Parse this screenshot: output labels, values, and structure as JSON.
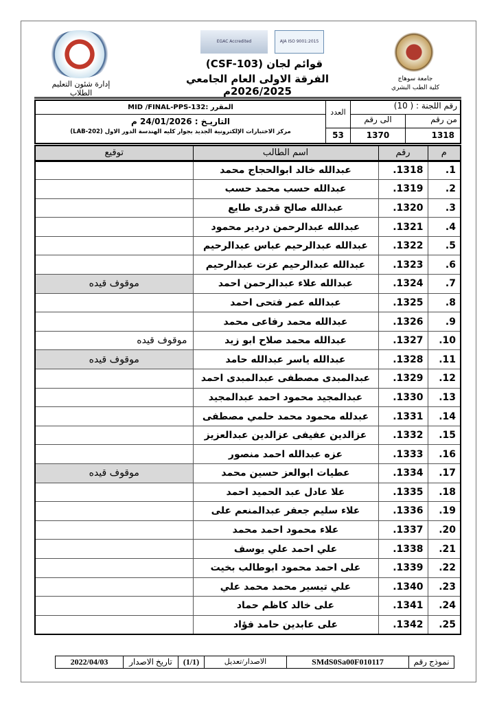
{
  "header": {
    "title": "قوائم لجان (CSF-103)",
    "subtitle": "الفرقة الاولى العام الجامعي 2026/2025م",
    "left_caption": "إدارة شئون التعليم الطلاب",
    "right_caption_1": "جامعة سوهاج",
    "right_caption_2": "كلية الطب البشري",
    "cert_logo_1": "EGAC Accredited",
    "cert_logo_2": "AJA ISO 9001:2015"
  },
  "info": {
    "committee": "رقم اللجنة : ( 10)",
    "from_label": "من رقم",
    "from_value": "1318",
    "to_label": "الى رقم",
    "to_value": "1370",
    "count_label": "العدد",
    "count_value": "53",
    "course": "المقرر :MID /FINAL-PPS-132",
    "date": "التاريـخ : 24/01/2026 م",
    "location": "مركز الاختبارات الإلكترونية الجديد بجوار كليه الهندسة الدور الاول (LAB-202)"
  },
  "table": {
    "headers": {
      "index": "م",
      "number": "رقم",
      "name": "اسم الطالب",
      "signature": "توقيع"
    },
    "rows": [
      {
        "i": "1.",
        "n": "1318.",
        "name": "عبدالله خالد ابوالحجاج محمد",
        "sig": ""
      },
      {
        "i": "2.",
        "n": "1319.",
        "name": "عبدالله حسب محمد حسب",
        "sig": ""
      },
      {
        "i": "3.",
        "n": "1320.",
        "name": "عبدالله صالح قدرى طايع",
        "sig": ""
      },
      {
        "i": "4.",
        "n": "1321.",
        "name": "عبدالله عبدالرحمن دردير محمود",
        "sig": ""
      },
      {
        "i": "5.",
        "n": "1322.",
        "name": "عبدالله عبدالرحيم عباس عبدالرحيم",
        "sig": ""
      },
      {
        "i": "6.",
        "n": "1323.",
        "name": "عبدالله عبدالرحيم عزت عبدالرحيم",
        "sig": ""
      },
      {
        "i": "7.",
        "n": "1324.",
        "name": "عبدالله علاء عبدالرحمن احمد",
        "sig": "موقوف قيده",
        "shaded": true
      },
      {
        "i": "8.",
        "n": "1325.",
        "name": "عبدالله عمر فتحى احمد",
        "sig": ""
      },
      {
        "i": "9.",
        "n": "1326.",
        "name": "عبدالله محمد رفاعى محمد",
        "sig": ""
      },
      {
        "i": "10.",
        "n": "1327.",
        "name": "عبدالله محمد صلاح ابو زيد",
        "sig": "موقوف قيده",
        "shaded": false
      },
      {
        "i": "11.",
        "n": "1328.",
        "name": "عبدالله ياسر عبدالله حامد",
        "sig": "موقوف قيده",
        "shaded": true
      },
      {
        "i": "12.",
        "n": "1329.",
        "name": "عبدالمبدى مصطفى عبدالمبدى احمد",
        "sig": ""
      },
      {
        "i": "13.",
        "n": "1330.",
        "name": "عبدالمجيد محمود احمد عبدالمجيد",
        "sig": ""
      },
      {
        "i": "14.",
        "n": "1331.",
        "name": "عبدلله محمود محمد حلمي مصطفى",
        "sig": ""
      },
      {
        "i": "15.",
        "n": "1332.",
        "name": "عزالدين عفيفى عزالدين عبدالعزيز",
        "sig": ""
      },
      {
        "i": "16.",
        "n": "1333.",
        "name": "عزه عبدالله احمد منصور",
        "sig": ""
      },
      {
        "i": "17.",
        "n": "1334.",
        "name": "عطيات ابوالعز حسين محمد",
        "sig": "موقوف قيده",
        "shaded": true
      },
      {
        "i": "18.",
        "n": "1335.",
        "name": "علا عادل عبد الحميد احمد",
        "sig": ""
      },
      {
        "i": "19.",
        "n": "1336.",
        "name": "علاء سليم جعفر عبدالمنعم على",
        "sig": ""
      },
      {
        "i": "20.",
        "n": "1337.",
        "name": "علاء محمود احمد محمد",
        "sig": ""
      },
      {
        "i": "21.",
        "n": "1338.",
        "name": "علي احمد علي يوسف",
        "sig": ""
      },
      {
        "i": "22.",
        "n": "1339.",
        "name": "على احمد محمود ابوطالب بخيت",
        "sig": ""
      },
      {
        "i": "23.",
        "n": "1340.",
        "name": "علي تيسير محمد محمد علي",
        "sig": ""
      },
      {
        "i": "24.",
        "n": "1341.",
        "name": "على خالد كاظم حماد",
        "sig": ""
      },
      {
        "i": "25.",
        "n": "1342.",
        "name": "على عابدين حامد فؤاد",
        "sig": ""
      }
    ]
  },
  "footer": {
    "form_label": "نموذج رقم",
    "form_value": "SMdS0Sa00F010117",
    "version_label": "الاصدار/تعديل",
    "version_value": "(1/1)",
    "date_label": "تاريخ الاصدار",
    "date_value": "2022/04/03"
  }
}
